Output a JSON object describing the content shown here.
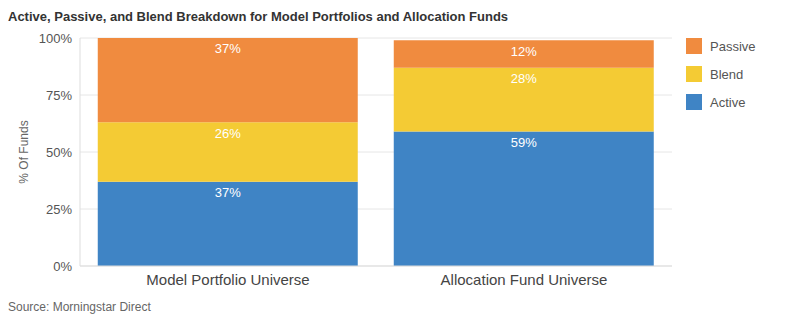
{
  "chart_data": {
    "type": "bar",
    "title": "Active, Passive, and Blend Breakdown for Model Portfolios and Allocation Funds",
    "ylabel": "% Of Funds",
    "source": "Source: Morningstar Direct",
    "categories": [
      "Model Portfolio Universe",
      "Allocation Fund Universe"
    ],
    "series": [
      {
        "name": "Active",
        "color": "#3f84c5",
        "values": [
          37,
          59
        ],
        "value_labels": [
          "37%",
          "59%"
        ]
      },
      {
        "name": "Blend",
        "color": "#f4cb34",
        "values": [
          26,
          28
        ],
        "value_labels": [
          "26%",
          "28%"
        ]
      },
      {
        "name": "Passive",
        "color": "#f08b3f",
        "values": [
          37,
          12
        ],
        "value_labels": [
          "37%",
          "12%"
        ]
      }
    ],
    "ylim": [
      0,
      100
    ],
    "yticks": [
      {
        "value": 0,
        "label": "0%"
      },
      {
        "value": 25,
        "label": "25%"
      },
      {
        "value": 50,
        "label": "50%"
      },
      {
        "value": 75,
        "label": "75%"
      },
      {
        "value": 100,
        "label": "100%"
      }
    ],
    "stacked": true,
    "data_labels": true,
    "legend": "right",
    "grid": true
  }
}
